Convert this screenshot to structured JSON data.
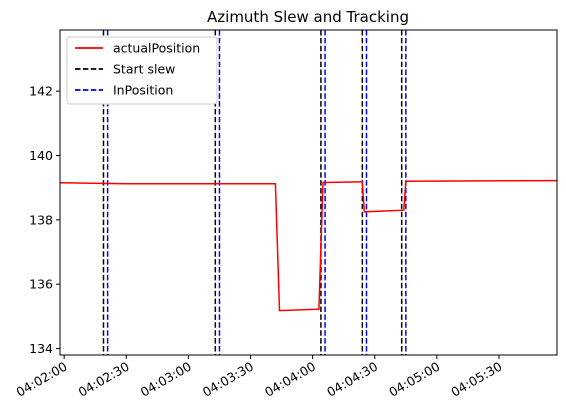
{
  "chart_data": {
    "type": "line",
    "title": "Azimuth Slew and Tracking",
    "xlabel": "",
    "ylabel": "",
    "x_ticks": [
      "04:02:00",
      "04:02:30",
      "04:03:00",
      "04:03:30",
      "04:04:00",
      "04:04:30",
      "04:05:00",
      "04:05:30"
    ],
    "y_ticks": [
      134,
      136,
      138,
      140,
      142
    ],
    "xlim": [
      "04:01:58",
      "04:05:58"
    ],
    "ylim": [
      133.8,
      143.9
    ],
    "grid": false,
    "legend_position": "top-left",
    "series": [
      {
        "name": "actualPosition",
        "color": "#ff0000",
        "style": "solid",
        "points": [
          [
            "04:01:58",
            139.15
          ],
          [
            "04:02:30",
            139.12
          ],
          [
            "04:03:13",
            139.12
          ],
          [
            "04:03:42",
            139.12
          ],
          [
            "04:03:43",
            137.2
          ],
          [
            "04:03:44",
            135.18
          ],
          [
            "04:04:02",
            135.22
          ],
          [
            "04:04:03",
            135.22
          ],
          [
            "04:04:05",
            139.16
          ],
          [
            "04:04:23",
            139.18
          ],
          [
            "04:04:24",
            139.18
          ],
          [
            "04:04:25",
            138.25
          ],
          [
            "04:04:44",
            138.3
          ],
          [
            "04:04:44",
            138.3
          ],
          [
            "04:04:45",
            139.2
          ],
          [
            "04:05:58",
            139.22
          ]
        ]
      }
    ],
    "vertical_lines": [
      {
        "name": "Start slew",
        "color": "#000000",
        "style": "dashed",
        "x": [
          "04:02:19",
          "04:03:13",
          "04:04:04",
          "04:04:24",
          "04:04:43"
        ]
      },
      {
        "name": "InPosition",
        "color": "#0000ff",
        "style": "dashed",
        "x": [
          "04:02:21",
          "04:03:15",
          "04:04:06",
          "04:04:26",
          "04:04:45"
        ]
      }
    ]
  }
}
